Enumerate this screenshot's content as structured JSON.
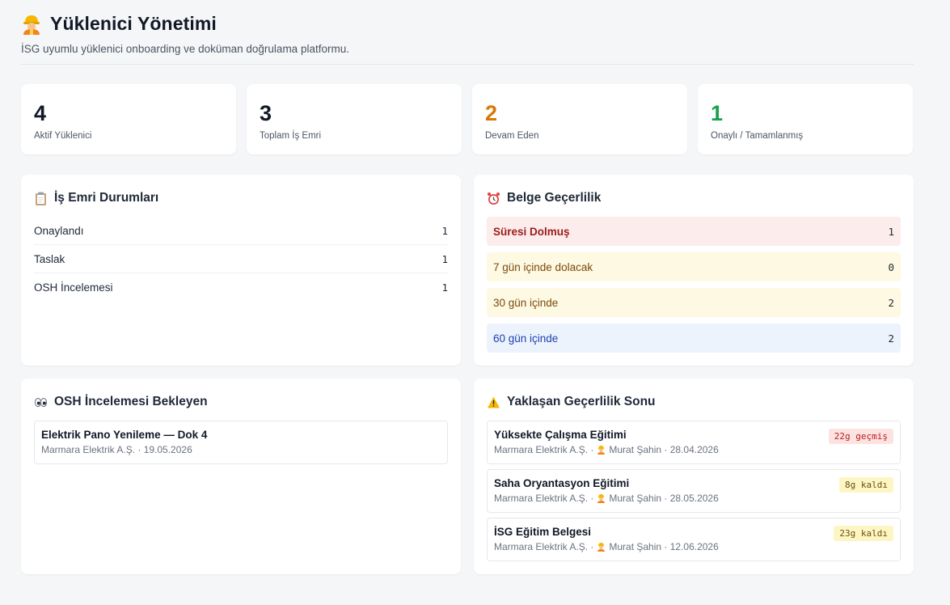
{
  "header": {
    "title": "Yüklenici Yönetimi",
    "subtitle": "İSG uyumlu yüklenici onboarding ve doküman doğrulama platformu.",
    "icon": "construction-worker-icon"
  },
  "stats": [
    {
      "value": "4",
      "label": "Aktif Yüklenici",
      "color": "#111827"
    },
    {
      "value": "3",
      "label": "Toplam İş Emri",
      "color": "#111827"
    },
    {
      "value": "2",
      "label": "Devam Eden",
      "color": "#d97706"
    },
    {
      "value": "1",
      "label": "Onaylı / Tamamlanmış",
      "color": "#16a34a"
    }
  ],
  "work_orders": {
    "title": "İş Emri Durumları",
    "icon": "clipboard-icon",
    "rows": [
      {
        "label": "Onaylandı",
        "count": "1"
      },
      {
        "label": "Taslak",
        "count": "1"
      },
      {
        "label": "OSH İncelemesi",
        "count": "1"
      }
    ]
  },
  "validity": {
    "title": "Belge Geçerlilik",
    "icon": "alarm-clock-icon",
    "rows": [
      {
        "label": "Süresi Dolmuş",
        "count": "1"
      },
      {
        "label": "7 gün içinde dolacak",
        "count": "0"
      },
      {
        "label": "30 gün içinde",
        "count": "2"
      },
      {
        "label": "60 gün içinde",
        "count": "2"
      }
    ]
  },
  "osh_pending": {
    "title": "OSH İncelemesi Bekleyen",
    "icon": "eyes-icon",
    "items": [
      {
        "title": "Elektrik Pano Yenileme — Dok 4",
        "meta": "Marmara Elektrik A.Ş. · 19.05.2026"
      }
    ]
  },
  "expiring": {
    "title": "Yaklaşan Geçerlilik Sonu",
    "icon": "warning-icon",
    "items": [
      {
        "title": "Yüksekte Çalışma Eğitimi",
        "company": "Marmara Elektrik A.Ş. ·",
        "person": "Murat Şahin · 28.04.2026",
        "badge": "22g geçmiş",
        "badge_color": "#fde2e2"
      },
      {
        "title": "Saha Oryantasyon Eğitimi",
        "company": "Marmara Elektrik A.Ş. ·",
        "person": "Murat Şahin · 28.05.2026",
        "badge": "8g kaldı",
        "badge_color": "#fdf6c3"
      },
      {
        "title": "İSG Eğitim Belgesi",
        "company": "Marmara Elektrik A.Ş. ·",
        "person": "Murat Şahin · 12.06.2026",
        "badge": "23g kaldı",
        "badge_color": "#fdf6c3"
      }
    ]
  }
}
